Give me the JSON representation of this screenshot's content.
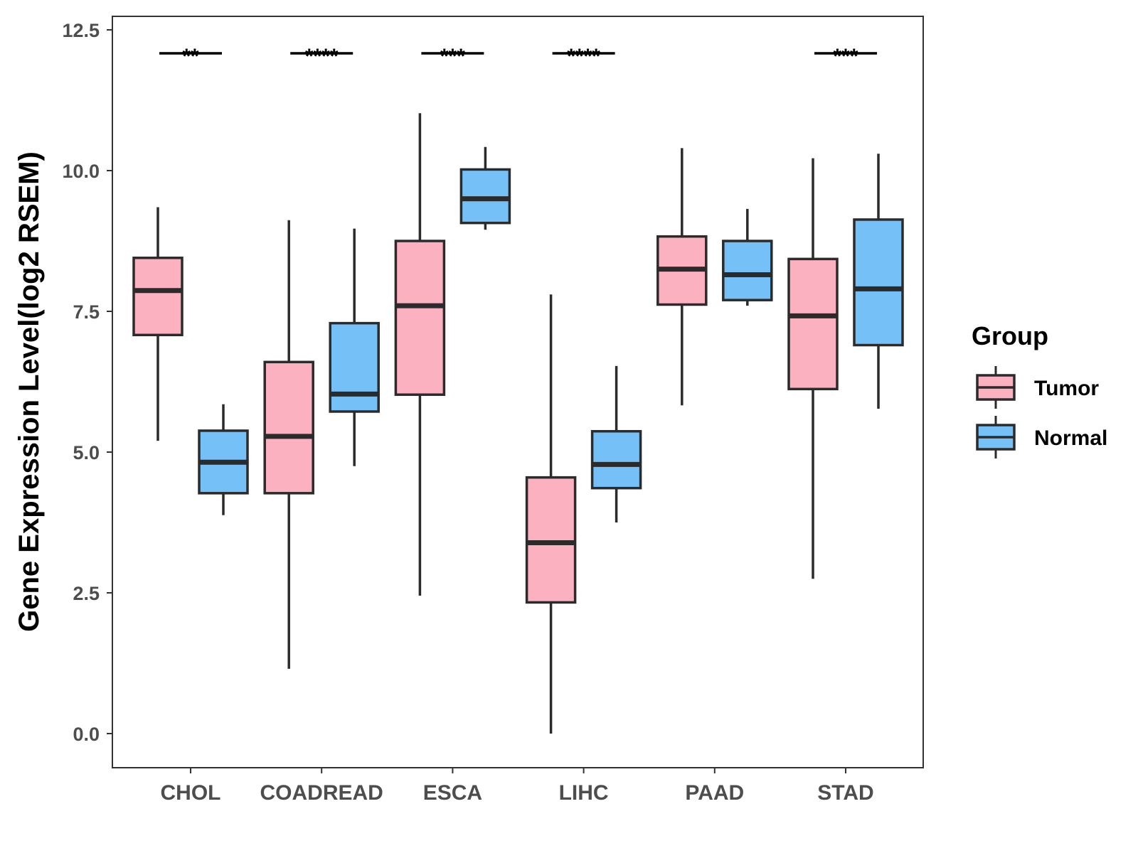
{
  "chart_data": {
    "type": "boxplot",
    "title": "",
    "xlabel": "",
    "ylabel": "Gene Expression Level(log2 RSEM)",
    "ylim": [
      -0.6,
      12.75
    ],
    "yticks": [
      {
        "value": 0,
        "label": "0.0"
      },
      {
        "value": 2.5,
        "label": "2.5"
      },
      {
        "value": 5,
        "label": "5.0"
      },
      {
        "value": 7.5,
        "label": "7.5"
      },
      {
        "value": 10,
        "label": "10.0"
      },
      {
        "value": 12.5,
        "label": "12.5"
      }
    ],
    "grid": false,
    "categories": [
      "CHOL",
      "COADREAD",
      "ESCA",
      "LIHC",
      "PAAD",
      "STAD"
    ],
    "series": [
      {
        "name": "Tumor",
        "color": "#FBB1C0",
        "boxes": [
          {
            "min": 5.2,
            "q1": 7.08,
            "median": 7.87,
            "q3": 8.45,
            "max": 9.35
          },
          {
            "min": 1.15,
            "q1": 4.27,
            "median": 5.28,
            "q3": 6.6,
            "max": 9.12
          },
          {
            "min": 2.45,
            "q1": 6.02,
            "median": 7.6,
            "q3": 8.75,
            "max": 11.02
          },
          {
            "min": 0.0,
            "q1": 2.33,
            "median": 3.39,
            "q3": 4.55,
            "max": 7.8
          },
          {
            "min": 5.83,
            "q1": 7.62,
            "median": 8.25,
            "q3": 8.83,
            "max": 10.4
          },
          {
            "min": 2.75,
            "q1": 6.12,
            "median": 7.42,
            "q3": 8.43,
            "max": 10.22
          }
        ]
      },
      {
        "name": "Normal",
        "color": "#76C0F8",
        "boxes": [
          {
            "min": 3.88,
            "q1": 4.27,
            "median": 4.82,
            "q3": 5.38,
            "max": 5.85
          },
          {
            "min": 4.75,
            "q1": 5.72,
            "median": 6.03,
            "q3": 7.29,
            "max": 8.97
          },
          {
            "min": 8.95,
            "q1": 9.07,
            "median": 9.5,
            "q3": 10.02,
            "max": 10.42
          },
          {
            "min": 3.75,
            "q1": 4.36,
            "median": 4.78,
            "q3": 5.37,
            "max": 6.53
          },
          {
            "min": 7.6,
            "q1": 7.7,
            "median": 8.15,
            "q3": 8.75,
            "max": 9.32
          },
          {
            "min": 5.77,
            "q1": 6.9,
            "median": 7.9,
            "q3": 9.13,
            "max": 10.3
          }
        ]
      }
    ],
    "significance": [
      {
        "category": "CHOL",
        "label": "**"
      },
      {
        "category": "COADREAD",
        "label": "****"
      },
      {
        "category": "ESCA",
        "label": "***"
      },
      {
        "category": "LIHC",
        "label": "****"
      },
      {
        "category": "STAD",
        "label": "***"
      }
    ],
    "legend": {
      "title": "Group",
      "position": "right",
      "items": [
        "Tumor",
        "Normal"
      ]
    }
  }
}
